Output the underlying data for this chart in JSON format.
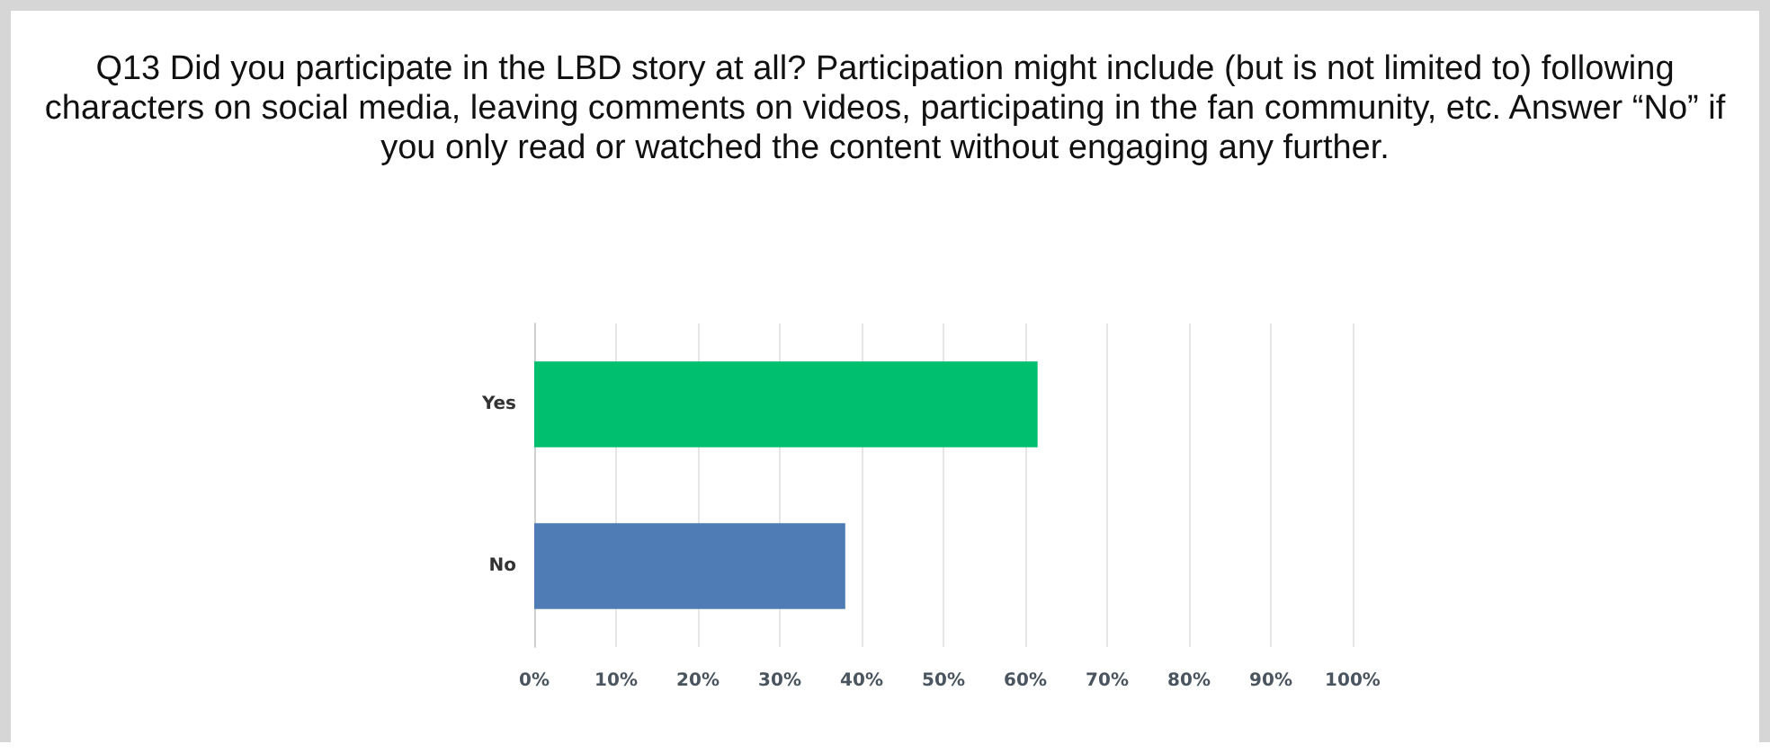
{
  "chart_data": {
    "type": "bar",
    "orientation": "horizontal",
    "title": "Q13 Did you participate in the LBD story at all? Participation might include (but is not limited to) following characters on social media, leaving comments on videos, participating in the fan community, etc. Answer “No” if you only read or watched the content without engaging any further.",
    "categories": [
      "Yes",
      "No"
    ],
    "values": [
      61.5,
      38
    ],
    "colors": [
      "#00bf6f",
      "#4f7cb5"
    ],
    "xlim": [
      0,
      100
    ],
    "xticks": [
      {
        "value": 0,
        "label": "0%"
      },
      {
        "value": 10,
        "label": "10%"
      },
      {
        "value": 20,
        "label": "20%"
      },
      {
        "value": 30,
        "label": "30%"
      },
      {
        "value": 40,
        "label": "40%"
      },
      {
        "value": 50,
        "label": "50%"
      },
      {
        "value": 60,
        "label": "60%"
      },
      {
        "value": 70,
        "label": "70%"
      },
      {
        "value": 80,
        "label": "80%"
      },
      {
        "value": 90,
        "label": "90%"
      },
      {
        "value": 100,
        "label": "100%"
      }
    ],
    "grid": "x"
  }
}
